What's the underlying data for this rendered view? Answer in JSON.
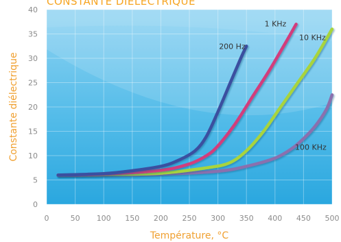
{
  "chart_data": {
    "type": "line",
    "title": "CONSTANTE DIÉLECTRIQUE",
    "xlabel": "Température, °C",
    "ylabel": "Constante diélectrique",
    "xlim": [
      0,
      500
    ],
    "ylim": [
      0,
      40
    ],
    "xticks": [
      "0",
      "50",
      "100",
      "150",
      "200",
      "250",
      "300",
      "350",
      "400",
      "450",
      "500"
    ],
    "yticks": [
      "0",
      "5",
      "10",
      "15",
      "20",
      "25",
      "30",
      "35",
      "40"
    ],
    "grid": true,
    "legend": "inline-labels",
    "series": [
      {
        "name": "200 Hz",
        "color": "#3a4fa0",
        "x": [
          20,
          100,
          150,
          200,
          230,
          260,
          280,
          300,
          320,
          340,
          350
        ],
        "y": [
          6.0,
          6.3,
          6.9,
          7.8,
          9.0,
          11.0,
          14.0,
          19.0,
          24.5,
          30.0,
          32.5
        ]
      },
      {
        "name": "1 KHz",
        "color": "#d23c7c",
        "x": [
          20,
          100,
          200,
          250,
          280,
          300,
          330,
          360,
          390,
          420,
          437
        ],
        "y": [
          6.0,
          6.2,
          7.0,
          8.3,
          10.0,
          12.0,
          16.5,
          22.0,
          27.5,
          33.5,
          37.0
        ]
      },
      {
        "name": "10 KHz",
        "color": "#a8d43e",
        "x": [
          20,
          100,
          200,
          280,
          320,
          350,
          380,
          410,
          440,
          470,
          500
        ],
        "y": [
          6.0,
          6.1,
          6.4,
          7.5,
          8.5,
          11.0,
          15.0,
          20.0,
          25.0,
          30.0,
          36.0
        ]
      },
      {
        "name": "100 KHz",
        "color": "#8a6fae",
        "x": [
          20,
          100,
          200,
          300,
          350,
          400,
          430,
          450,
          470,
          490,
          500
        ],
        "y": [
          6.0,
          6.0,
          6.2,
          6.8,
          7.8,
          9.5,
          11.5,
          13.5,
          16.0,
          19.5,
          22.5
        ]
      }
    ]
  }
}
